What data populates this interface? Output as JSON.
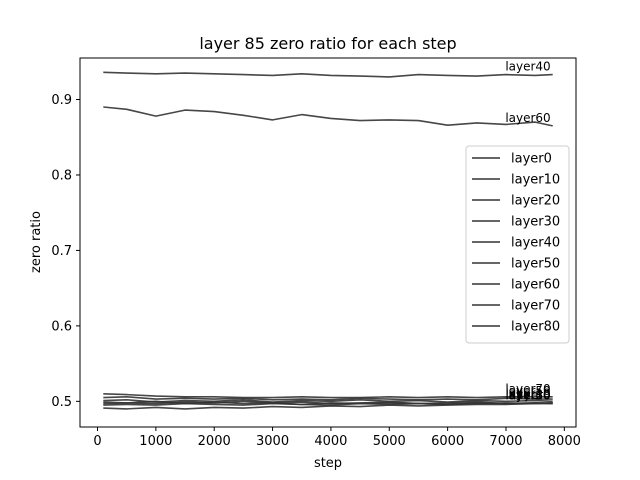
{
  "chart_data": {
    "type": "line",
    "title": "layer 85 zero ratio for each step",
    "xlabel": "step",
    "ylabel": "zero ratio",
    "xlim": [
      -300,
      8200
    ],
    "ylim": [
      0.466,
      0.955
    ],
    "xticks": [
      0,
      1000,
      2000,
      3000,
      4000,
      5000,
      6000,
      7000,
      8000
    ],
    "yticks": [
      0.5,
      0.6,
      0.7,
      0.8,
      0.9
    ],
    "xtick_labels": [
      "0",
      "1000",
      "2000",
      "3000",
      "4000",
      "5000",
      "6000",
      "7000",
      "8000"
    ],
    "ytick_labels": [
      "0.5",
      "0.6",
      "0.7",
      "0.8",
      "0.9"
    ],
    "grid": false,
    "legend_position": "center-right",
    "line_color": "#333333",
    "x": [
      100,
      500,
      1000,
      1500,
      2000,
      2500,
      3000,
      3500,
      4000,
      4500,
      5000,
      5500,
      6000,
      6500,
      7000,
      7500,
      7800
    ],
    "series": [
      {
        "name": "layer0",
        "values": [
          0.497,
          0.498,
          0.497,
          0.499,
          0.498,
          0.5,
          0.498,
          0.499,
          0.497,
          0.498,
          0.499,
          0.497,
          0.498,
          0.499,
          0.497,
          0.498,
          0.498
        ]
      },
      {
        "name": "layer10",
        "values": [
          0.501,
          0.502,
          0.499,
          0.501,
          0.5,
          0.502,
          0.499,
          0.501,
          0.5,
          0.502,
          0.5,
          0.501,
          0.499,
          0.501,
          0.5,
          0.501,
          0.5
        ]
      },
      {
        "name": "layer20",
        "values": [
          0.499,
          0.498,
          0.5,
          0.497,
          0.499,
          0.497,
          0.498,
          0.496,
          0.498,
          0.497,
          0.498,
          0.497,
          0.496,
          0.498,
          0.497,
          0.498,
          0.497
        ]
      },
      {
        "name": "layer30",
        "values": [
          0.491,
          0.49,
          0.492,
          0.49,
          0.492,
          0.491,
          0.493,
          0.492,
          0.494,
          0.493,
          0.495,
          0.494,
          0.495,
          0.496,
          0.496,
          0.497,
          0.497
        ]
      },
      {
        "name": "layer40",
        "values": [
          0.936,
          0.935,
          0.934,
          0.935,
          0.934,
          0.933,
          0.932,
          0.934,
          0.932,
          0.931,
          0.93,
          0.933,
          0.932,
          0.931,
          0.933,
          0.932,
          0.933
        ]
      },
      {
        "name": "layer50",
        "values": [
          0.505,
          0.506,
          0.503,
          0.504,
          0.503,
          0.504,
          0.502,
          0.503,
          0.502,
          0.504,
          0.503,
          0.502,
          0.503,
          0.502,
          0.504,
          0.503,
          0.503
        ]
      },
      {
        "name": "layer60",
        "values": [
          0.89,
          0.887,
          0.878,
          0.886,
          0.884,
          0.879,
          0.873,
          0.88,
          0.875,
          0.872,
          0.873,
          0.872,
          0.866,
          0.869,
          0.867,
          0.87,
          0.865
        ]
      },
      {
        "name": "layer70",
        "values": [
          0.51,
          0.509,
          0.507,
          0.506,
          0.506,
          0.505,
          0.505,
          0.506,
          0.505,
          0.505,
          0.506,
          0.505,
          0.506,
          0.505,
          0.506,
          0.506,
          0.506
        ]
      },
      {
        "name": "layer80",
        "values": [
          0.495,
          0.496,
          0.495,
          0.497,
          0.496,
          0.495,
          0.497,
          0.496,
          0.495,
          0.497,
          0.496,
          0.497,
          0.496,
          0.497,
          0.498,
          0.497,
          0.498
        ]
      }
    ],
    "end_labels": [
      "layer40",
      "layer60",
      "layer70",
      "layer50",
      "layer10",
      "layer80",
      "layer0",
      "layer20",
      "layer30"
    ]
  }
}
